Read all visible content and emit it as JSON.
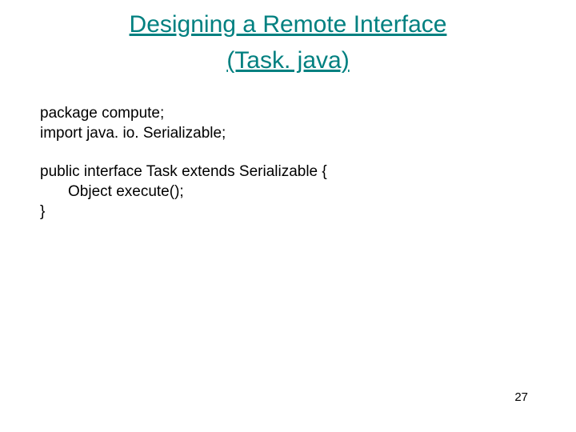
{
  "title": {
    "line1": "Designing a Remote Interface",
    "line2": "(Task. java)",
    "color": "#008080",
    "fontsize": 30
  },
  "code": {
    "lines": [
      {
        "text": "package compute;",
        "indent": false
      },
      {
        "text": "import java. io. Serializable;",
        "indent": false
      },
      {
        "text": "",
        "indent": false,
        "spacer": true
      },
      {
        "text": "public interface Task extends Serializable {",
        "indent": false
      },
      {
        "text": "Object execute();",
        "indent": true
      },
      {
        "text": "}",
        "indent": false
      }
    ],
    "fontsize": 19,
    "color": "#000000"
  },
  "page_number": "27",
  "background_color": "#ffffff"
}
